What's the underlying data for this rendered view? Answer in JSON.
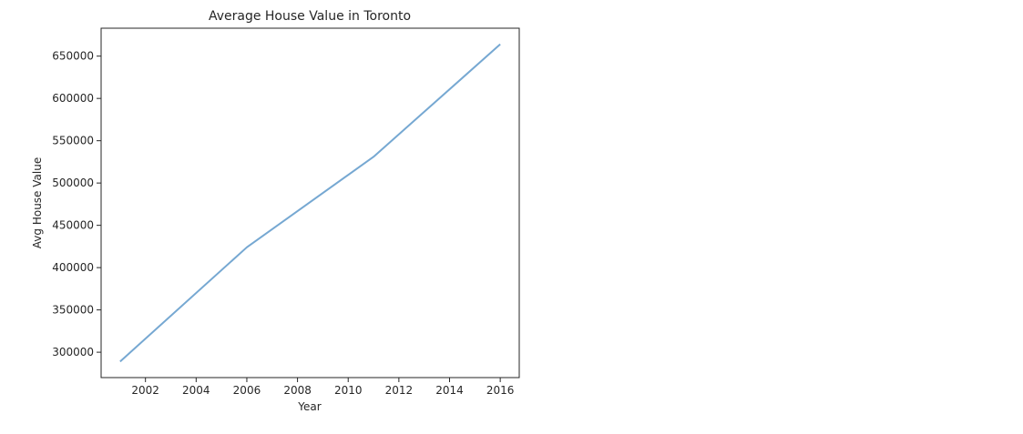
{
  "chart_data": {
    "type": "line",
    "title": "Average House Value in Toronto",
    "xlabel": "Year",
    "ylabel": "Avg House Value",
    "x": [
      2001,
      2006,
      2011,
      2016
    ],
    "series": [
      {
        "values": [
          289000,
          424000,
          531000,
          664000
        ],
        "color": "#76a8d2"
      }
    ],
    "xlim": [
      2000.25,
      2016.75
    ],
    "ylim": [
      270000,
      683000
    ],
    "xticks": [
      2002,
      2004,
      2006,
      2008,
      2010,
      2012,
      2014,
      2016
    ],
    "yticks": [
      300000,
      350000,
      400000,
      450000,
      500000,
      550000,
      600000,
      650000
    ],
    "grid": false,
    "legend": false
  }
}
